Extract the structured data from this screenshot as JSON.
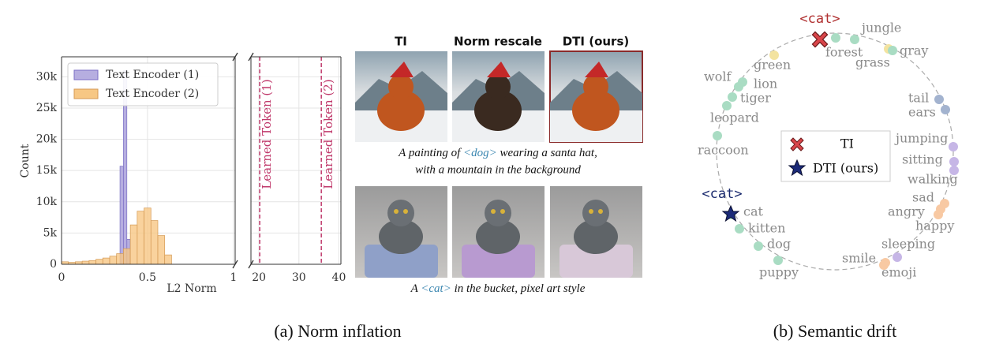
{
  "chart_data": {
    "type": "histogram",
    "ylabel": "Count",
    "xlabel": "L2 Norm",
    "xlim": [
      0,
      1.01
    ],
    "xticks": [
      0,
      0.5,
      1
    ],
    "ylim": [
      0,
      33200
    ],
    "yticks": [
      0,
      {
        "value": 5000,
        "label": "5k"
      },
      {
        "value": 10000,
        "label": "10k"
      },
      {
        "value": 15000,
        "label": "15k"
      },
      {
        "value": 20000,
        "label": "20k"
      },
      {
        "value": 25000,
        "label": "25k"
      },
      {
        "value": 30000,
        "label": "30k"
      }
    ],
    "grid": true,
    "legend": "upper left",
    "series": [
      {
        "name": "Text Encoder (1)",
        "color": "#b6aee0",
        "bins": [
          0.34,
          0.36,
          0.38,
          0.4
        ],
        "values": [
          15700,
          31000,
          4000
        ]
      },
      {
        "name": "Text Encoder (2)",
        "color": "#f7c784",
        "bins": [
          0,
          0.04,
          0.08,
          0.12,
          0.16,
          0.2,
          0.24,
          0.28,
          0.32,
          0.36,
          0.4,
          0.44,
          0.48,
          0.52,
          0.56,
          0.6,
          0.64
        ],
        "values": [
          400,
          300,
          400,
          500,
          600,
          800,
          1000,
          1300,
          1700,
          2500,
          6300,
          8500,
          9000,
          7000,
          4600,
          1500
        ]
      }
    ],
    "inset": {
      "xlim": [
        18,
        40.5
      ],
      "xticks": [
        20,
        30,
        40
      ],
      "line_color": "#c0396b",
      "lines": [
        {
          "x": 20.2,
          "label": "Learned Token (1)"
        },
        {
          "x": 35.6,
          "label": "Learned Token (2)"
        }
      ]
    }
  },
  "images": {
    "columns": [
      "TI",
      "Norm rescale",
      "DTI (ours)"
    ],
    "prompt_1": {
      "parts": [
        "A painting of ",
        "<dog>",
        " wearing a santa hat,"
      ],
      "line2": "with a mountain in the background"
    },
    "prompt_2": {
      "parts": [
        "A ",
        "<cat>",
        " in the bucket, pixel art style"
      ]
    }
  },
  "caption_a": "(a) Norm inflation",
  "drift": {
    "ti_token": "<cat>",
    "dti_token": "<cat>",
    "legend": [
      "TI",
      "DTI (ours)"
    ],
    "words": [
      {
        "text": "jungle",
        "color": "#a9dcc3"
      },
      {
        "text": "forest",
        "color": "#a9dcc3"
      },
      {
        "text": "grass",
        "color": "#f3e3a0"
      },
      {
        "text": "gray",
        "color": "#a9dcc3"
      },
      {
        "text": "green",
        "color": "#f3e3a0"
      },
      {
        "text": "lion",
        "color": "#a9dcc3"
      },
      {
        "text": "wolf",
        "color": "#a9dcc3"
      },
      {
        "text": "tiger",
        "color": "#a9dcc3"
      },
      {
        "text": "leopard",
        "color": "#a9dcc3"
      },
      {
        "text": "raccoon",
        "color": "#a9dcc3"
      },
      {
        "text": "tail",
        "color": "#a3b3cf"
      },
      {
        "text": "ears",
        "color": "#a3b3cf"
      },
      {
        "text": "jumping",
        "color": "#c6b6e6"
      },
      {
        "text": "sitting",
        "color": "#c6b6e6"
      },
      {
        "text": "walking",
        "color": "#c6b6e6"
      },
      {
        "text": "sad",
        "color": "#f8c9a3"
      },
      {
        "text": "angry",
        "color": "#f8c9a3"
      },
      {
        "text": "happy",
        "color": "#f8c9a3"
      },
      {
        "text": "sleeping",
        "color": "#c6b6e6"
      },
      {
        "text": "smile",
        "color": "#f8c9a3"
      },
      {
        "text": "emoji",
        "color": "#f8c9a3"
      },
      {
        "text": "cat",
        "color": "#a9dcc3"
      },
      {
        "text": "kitten",
        "color": "#a9dcc3"
      },
      {
        "text": "dog",
        "color": "#a9dcc3"
      },
      {
        "text": "puppy",
        "color": "#a9dcc3"
      }
    ]
  },
  "caption_b": "(b) Semantic drift"
}
